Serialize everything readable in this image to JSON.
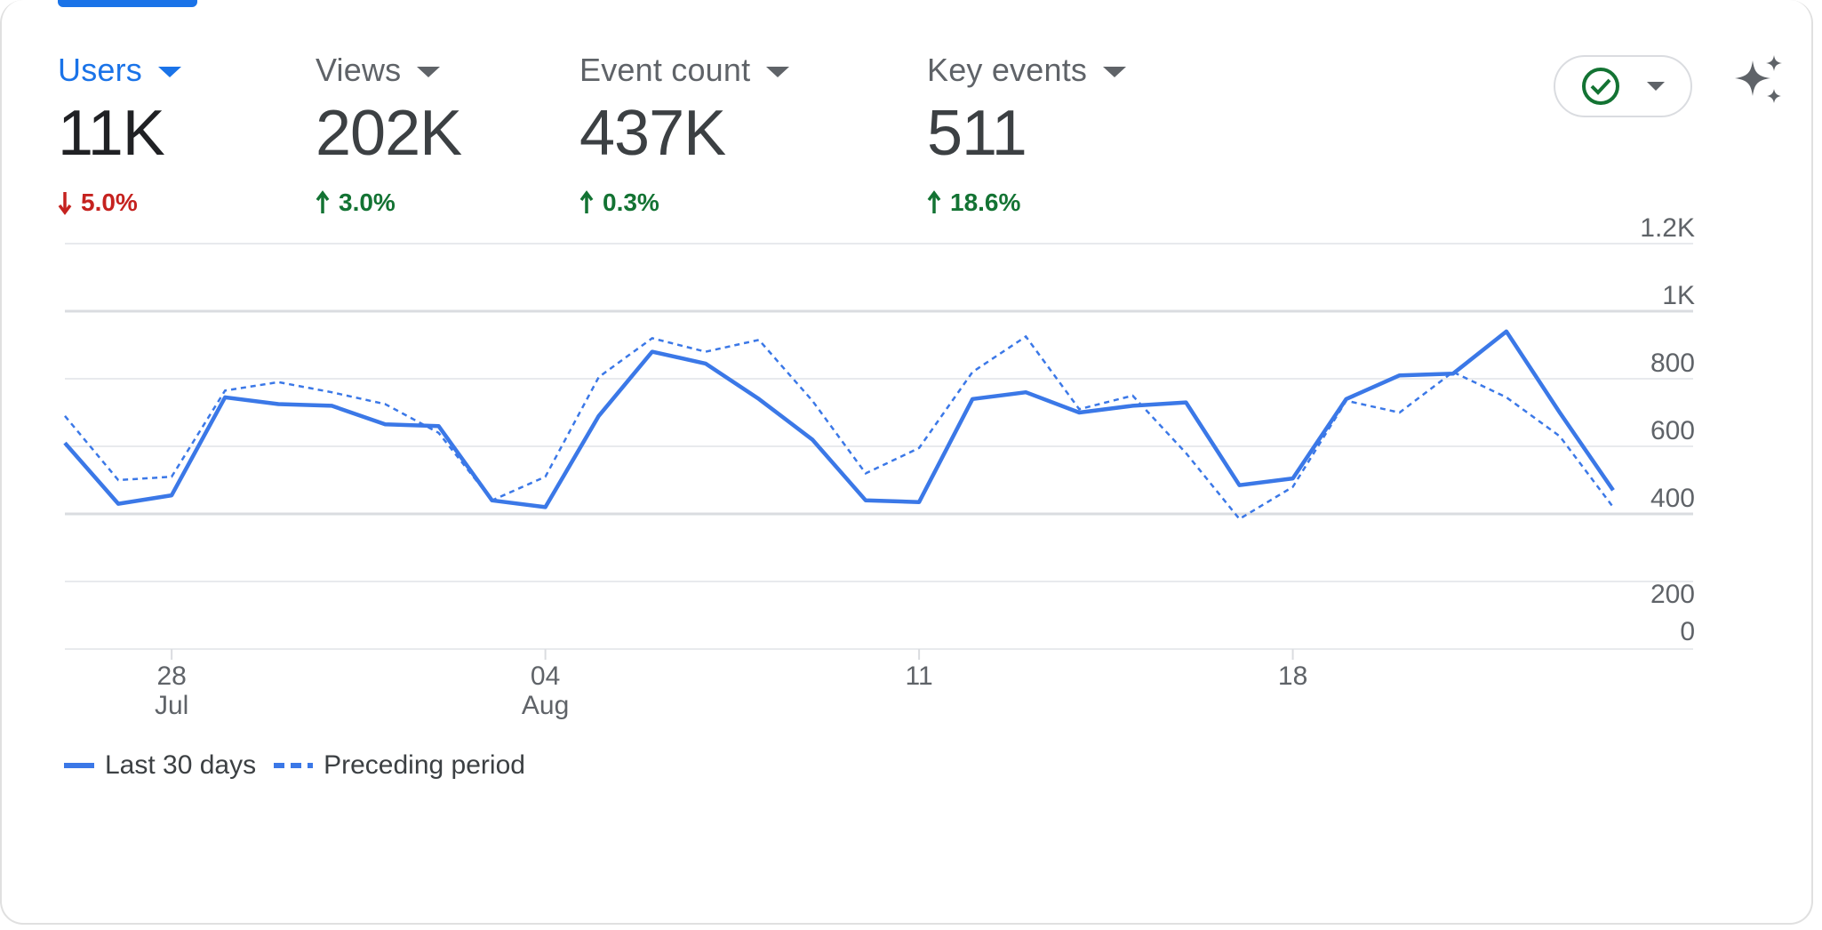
{
  "metrics": [
    {
      "label": "Users",
      "value": "11K",
      "change": "5.0%",
      "direction": "down"
    },
    {
      "label": "Views",
      "value": "202K",
      "change": "3.0%",
      "direction": "up"
    },
    {
      "label": "Event count",
      "value": "437K",
      "change": "0.3%",
      "direction": "up"
    },
    {
      "label": "Key events",
      "value": "511",
      "change": "18.6%",
      "direction": "up"
    }
  ],
  "icons": {
    "status": "check-circle-icon",
    "dropdown": "chevron-down-icon",
    "insights": "sparkle-icon"
  },
  "colors": {
    "accent": "#1a73e8",
    "series": "#3b78e7",
    "up": "#137333",
    "down": "#c5221f"
  },
  "legend": {
    "current": "Last 30 days",
    "previous": "Preceding period"
  },
  "chart_data": {
    "type": "line",
    "x_tick_labels": [
      {
        "day": "28",
        "month": "Jul"
      },
      {
        "day": "04",
        "month": "Aug"
      },
      {
        "day": "11",
        "month": ""
      },
      {
        "day": "18",
        "month": ""
      }
    ],
    "x": [
      26,
      27,
      28,
      29,
      30,
      31,
      32,
      33,
      34,
      35,
      36,
      37,
      38,
      39,
      40,
      41,
      42,
      43,
      44,
      45,
      46,
      47,
      48,
      49,
      50,
      51,
      52,
      53,
      54,
      55
    ],
    "x_note_tick_positions": [
      28,
      35,
      42,
      49
    ],
    "y_tick_labels": [
      "0",
      "200",
      "400",
      "600",
      "800",
      "1K",
      "1.2K"
    ],
    "ylim": [
      0,
      1200
    ],
    "grid": true,
    "y_axis_side": "right",
    "legend_position": "bottom-left",
    "series": [
      {
        "name": "Last 30 days",
        "style": "solid",
        "values": [
          610,
          430,
          455,
          745,
          725,
          720,
          665,
          660,
          440,
          420,
          690,
          880,
          845,
          740,
          620,
          440,
          435,
          740,
          760,
          700,
          720,
          730,
          485,
          505,
          740,
          810,
          815,
          940,
          700,
          470
        ]
      },
      {
        "name": "Preceding period",
        "style": "dashed",
        "values": [
          690,
          500,
          510,
          765,
          790,
          760,
          725,
          640,
          440,
          510,
          805,
          920,
          880,
          915,
          735,
          520,
          595,
          820,
          925,
          710,
          750,
          580,
          385,
          480,
          735,
          700,
          820,
          745,
          630,
          420
        ]
      }
    ]
  }
}
